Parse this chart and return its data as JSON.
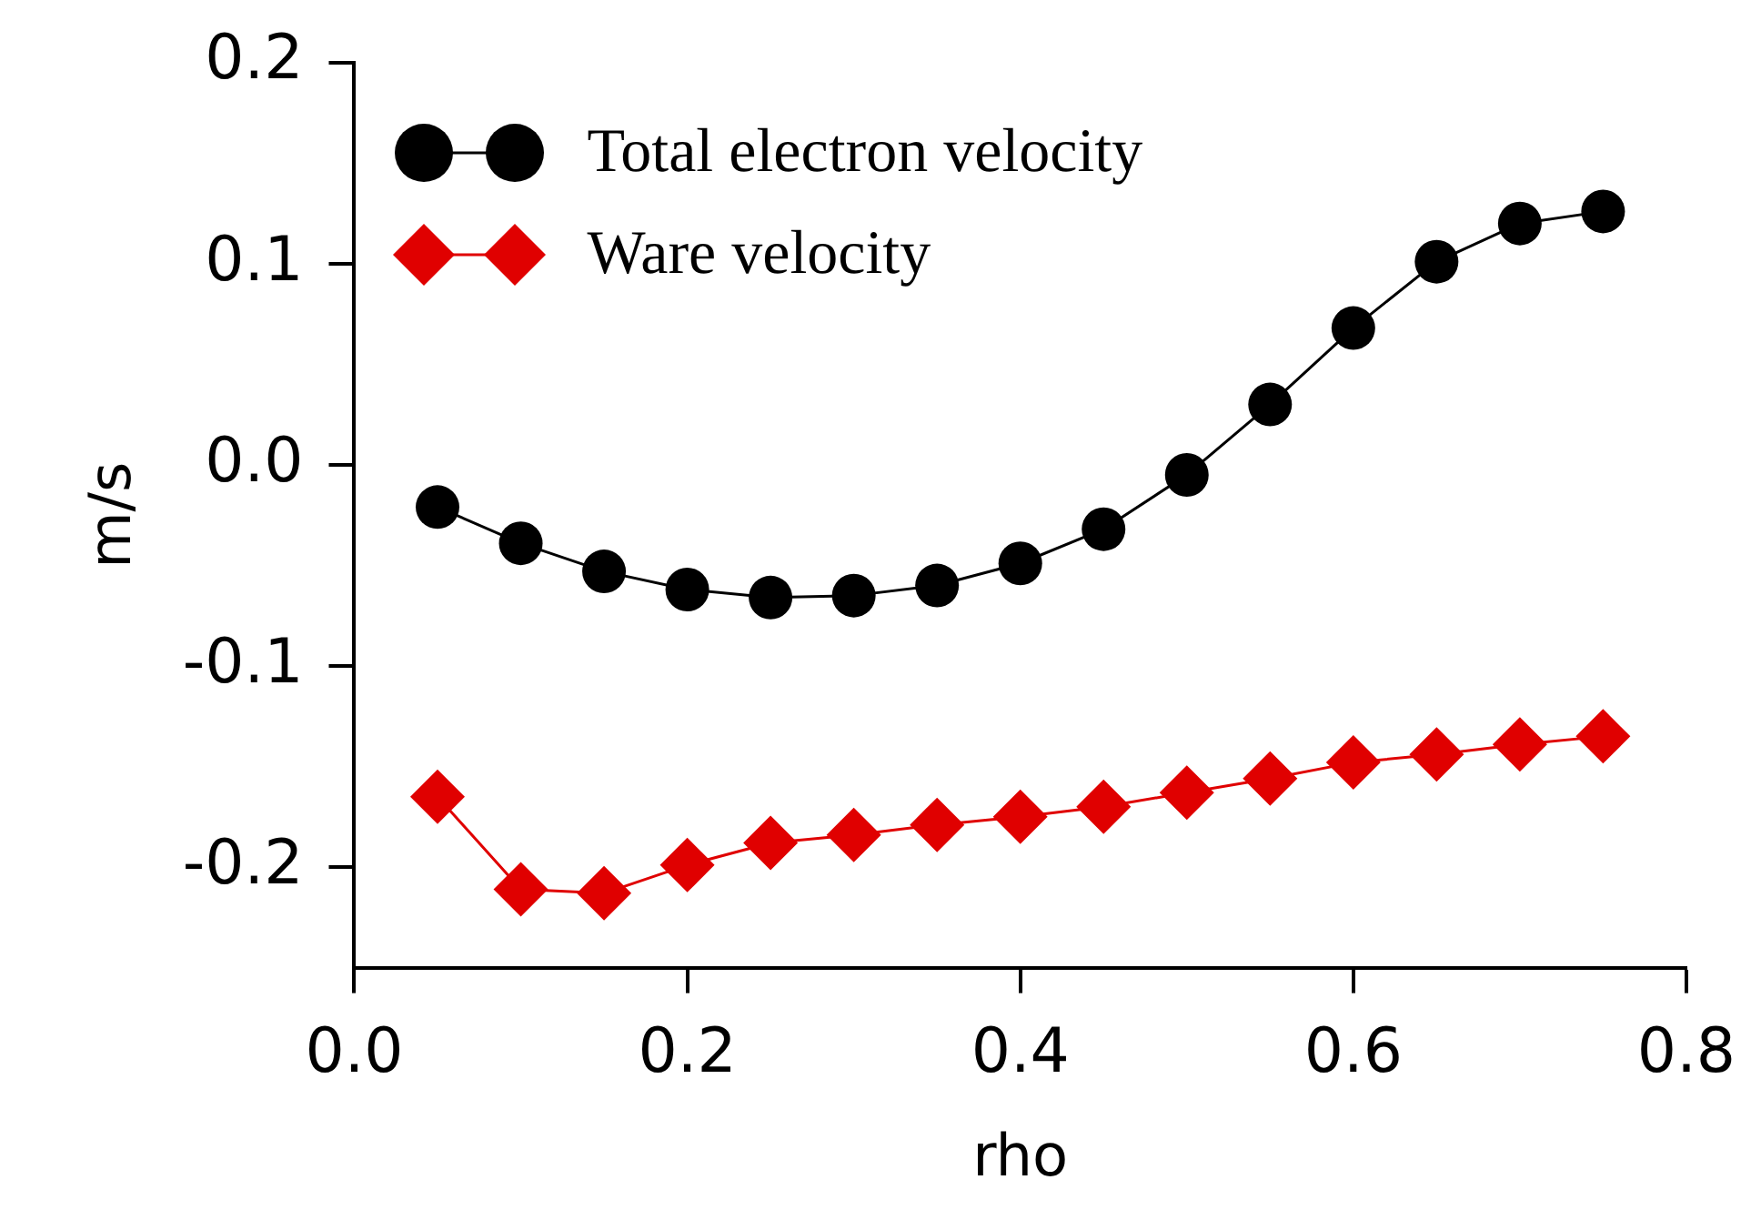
{
  "chart_data": {
    "type": "line",
    "xlabel": "rho",
    "ylabel": "m/s",
    "x": [
      0.05,
      0.1,
      0.15,
      0.2,
      0.25,
      0.3,
      0.35,
      0.4,
      0.45,
      0.5,
      0.55,
      0.6,
      0.65,
      0.7,
      0.75
    ],
    "series": [
      {
        "name": "Total electron velocity",
        "color": "#000000",
        "marker": "circle",
        "values": [
          -0.021,
          -0.039,
          -0.053,
          -0.062,
          -0.066,
          -0.065,
          -0.06,
          -0.049,
          -0.032,
          -0.005,
          0.03,
          0.068,
          0.101,
          0.12,
          0.126
        ]
      },
      {
        "name": "Ware velocity",
        "color": "#e00000",
        "marker": "diamond",
        "values": [
          -0.165,
          -0.211,
          -0.213,
          -0.199,
          -0.188,
          -0.184,
          -0.179,
          -0.175,
          -0.17,
          -0.163,
          -0.156,
          -0.148,
          -0.144,
          -0.139,
          -0.135
        ]
      }
    ],
    "xlim": [
      0,
      0.8
    ],
    "xticks": [
      {
        "value": 0,
        "label": "0.0"
      },
      0.2,
      0.4,
      0.6,
      0.8
    ],
    "ylim": [
      -0.25,
      0.2
    ],
    "yticks": [
      -0.2,
      -0.1,
      {
        "value": 0,
        "label": "0.0"
      },
      0.1,
      0.2
    ],
    "grid": false,
    "legend": "top left",
    "line_style": "solid"
  }
}
